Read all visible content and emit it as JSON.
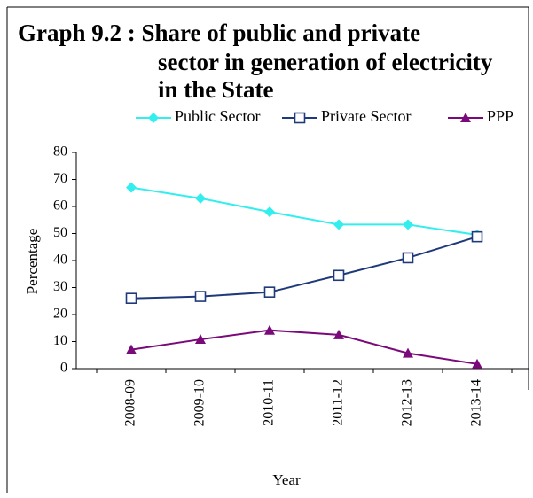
{
  "chart_data": {
    "type": "line",
    "title": [
      "Graph 9.2 : Share of public and private",
      "sector in generation of electricity",
      "in the State"
    ],
    "x_label": "Year",
    "y_label": "Percentage",
    "categories": [
      "2008-09",
      "2009-10",
      "2010-11",
      "2011-12",
      "2012-13",
      "2013-14"
    ],
    "series": [
      {
        "name": "Public Sector",
        "color": "#33eeee",
        "marker": "diamond",
        "values": [
          67,
          63,
          58,
          53.3,
          53.3,
          49.5
        ]
      },
      {
        "name": "Private Sector",
        "color": "#1f3a7a",
        "marker": "square",
        "values": [
          26,
          26.7,
          28.3,
          34.5,
          41,
          48.8
        ]
      },
      {
        "name": "PPP",
        "color": "#7a0a7a",
        "marker": "triangle",
        "values": [
          7,
          10.8,
          14.2,
          12.5,
          5.7,
          1.7
        ]
      }
    ],
    "ylim": [
      0,
      80
    ],
    "yticks": [
      0,
      10,
      20,
      30,
      40,
      50,
      60,
      70,
      80
    ],
    "grid": false,
    "legend": "top"
  }
}
